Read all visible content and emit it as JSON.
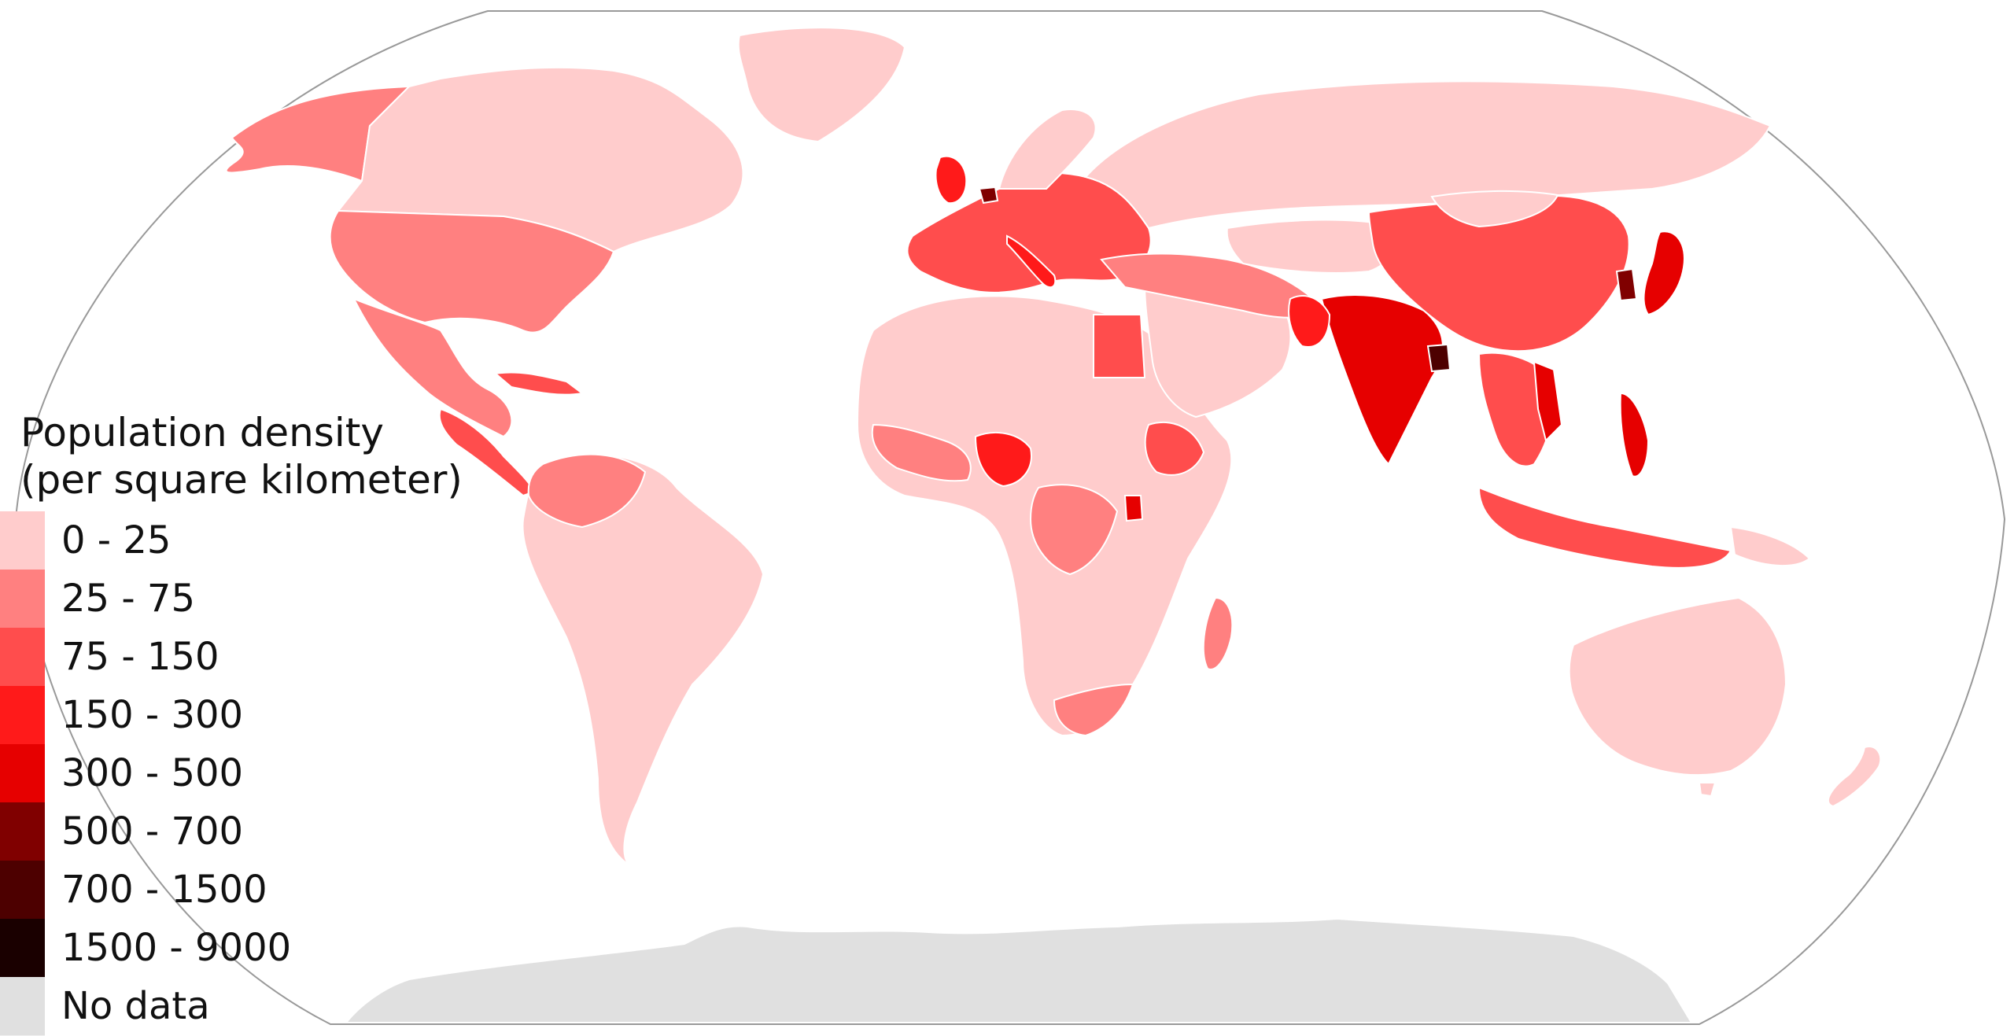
{
  "legend": {
    "title_line1": "Population density",
    "title_line2": "(per square kilometer)",
    "items": [
      {
        "label": "0 - 25",
        "color": "#ffcccc"
      },
      {
        "label": "25 - 75",
        "color": "#ff8080"
      },
      {
        "label": "75 - 150",
        "color": "#ff4d4d"
      },
      {
        "label": "150 - 300",
        "color": "#ff1a1a"
      },
      {
        "label": "300 - 500",
        "color": "#e60000"
      },
      {
        "label": "500 - 700",
        "color": "#800000"
      },
      {
        "label": "700 - 1500",
        "color": "#4d0000"
      },
      {
        "label": "1500 - 9000",
        "color": "#1a0000"
      },
      {
        "label": "No data",
        "color": "#e0e0e0"
      }
    ]
  },
  "colors": {
    "ocean": "#ffffff",
    "border": "#ffffff",
    "frame": "#999999",
    "antarctica": "#e0e0e0"
  },
  "regions": [
    {
      "name": "north-america",
      "density_class": "0 - 25"
    },
    {
      "name": "greenland",
      "density_class": "0 - 25"
    },
    {
      "name": "usa",
      "density_class": "25 - 75"
    },
    {
      "name": "mexico",
      "density_class": "25 - 75"
    },
    {
      "name": "south-america",
      "density_class": "0 - 25"
    },
    {
      "name": "europe",
      "density_class": "75 - 150"
    },
    {
      "name": "russia",
      "density_class": "0 - 25"
    },
    {
      "name": "africa",
      "density_class": "0 - 25"
    },
    {
      "name": "nigeria",
      "density_class": "150 - 300"
    },
    {
      "name": "middle-east",
      "density_class": "0 - 25"
    },
    {
      "name": "india",
      "density_class": "300 - 500"
    },
    {
      "name": "bangladesh",
      "density_class": "700 - 1500"
    },
    {
      "name": "china",
      "density_class": "75 - 150"
    },
    {
      "name": "japan",
      "density_class": "300 - 500"
    },
    {
      "name": "south-korea",
      "density_class": "500 - 700"
    },
    {
      "name": "southeast-asia",
      "density_class": "75 - 150"
    },
    {
      "name": "philippines",
      "density_class": "300 - 500"
    },
    {
      "name": "australia",
      "density_class": "0 - 25"
    },
    {
      "name": "new-zealand",
      "density_class": "0 - 25"
    },
    {
      "name": "madagascar",
      "density_class": "25 - 75"
    },
    {
      "name": "antarctica",
      "density_class": "No data"
    }
  ]
}
